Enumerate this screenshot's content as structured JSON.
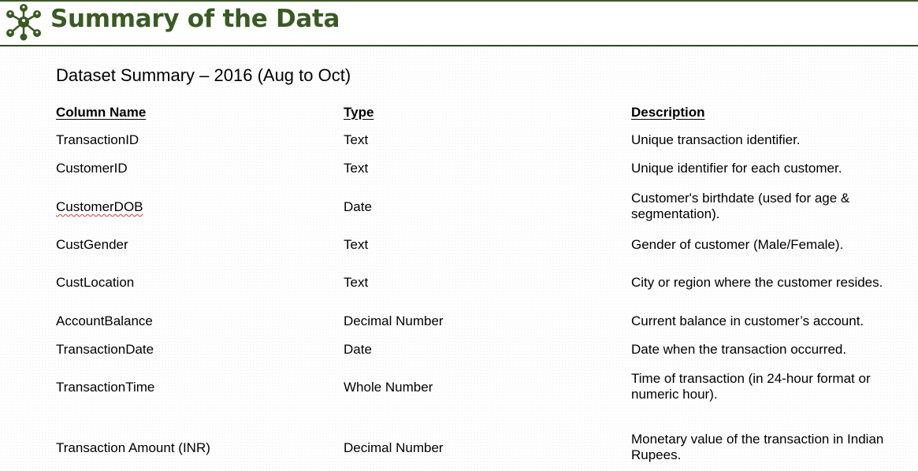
{
  "header": {
    "title": "Summary of the Data",
    "accent_color": "#3a5a24",
    "logo_icon": "network-nodes-icon"
  },
  "subtitle": "Dataset Summary – 2016 (Aug to Oct)",
  "table": {
    "headers": [
      "Column Name",
      "Type",
      "Description"
    ],
    "rows": [
      {
        "name": "TransactionID",
        "type": "Text",
        "description": "Unique transaction identifier."
      },
      {
        "name": "CustomerID",
        "type": "Text",
        "description": "Unique identifier for each customer."
      },
      {
        "name": "CustomerDOB",
        "type": "Date",
        "description": "Customer's birthdate (used for age & segmentation)."
      },
      {
        "name": "CustGender",
        "type": "Text",
        "description": "Gender of customer (Male/Female)."
      },
      {
        "name": "CustLocation",
        "type": "Text",
        "description": "City or region where the customer resides."
      },
      {
        "name": "AccountBalance",
        "type": "Decimal Number",
        "description": "Current balance in customer’s account."
      },
      {
        "name": "TransactionDate",
        "type": "Date",
        "description": "Date when the transaction occurred."
      },
      {
        "name": "TransactionTime",
        "type": "Whole Number",
        "description": "Time of transaction (in 24-hour format or numeric hour)."
      },
      {
        "name": "Transaction Amount (INR)",
        "type": "Decimal Number",
        "description": "Monetary value of the transaction in Indian Rupees."
      }
    ]
  }
}
